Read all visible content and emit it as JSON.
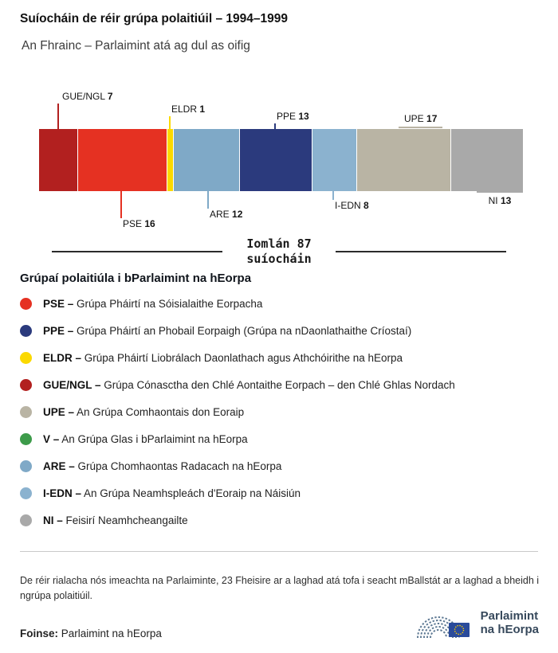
{
  "header": {
    "title": "Suíocháin de réir grúpa polaitiúil – 1994–1999",
    "subtitle": "An Fhrainc – Parlaimint atá ag dul as oifig"
  },
  "chart_data": {
    "type": "bar",
    "variant": "horizontal-stacked-seats",
    "total": 87,
    "total_label": "Iomlán 87",
    "total_unit_label": "suíocháin",
    "segments": [
      {
        "code": "GUE/NGL",
        "value": 7,
        "color": "#b2201f",
        "callout_side": "above"
      },
      {
        "code": "PSE",
        "value": 16,
        "color": "#e53122",
        "callout_side": "below"
      },
      {
        "code": "ELDR",
        "value": 1,
        "color": "#fbd900",
        "callout_side": "above"
      },
      {
        "code": "ARE",
        "value": 12,
        "color": "#7fa9c7",
        "callout_side": "below"
      },
      {
        "code": "PPE",
        "value": 13,
        "color": "#2b3a7d",
        "callout_side": "above"
      },
      {
        "code": "I-EDN",
        "value": 8,
        "color": "#8bb2cf",
        "callout_side": "below"
      },
      {
        "code": "UPE",
        "value": 17,
        "color": "#b9b4a4",
        "callout_side": "above"
      },
      {
        "code": "NI",
        "value": 13,
        "color": "#a9a9a9",
        "callout_side": "below"
      }
    ]
  },
  "legend": {
    "title": "Grúpaí polaitiúla i bParlaimint na hEorpa",
    "items": [
      {
        "code": "PSE –",
        "text": "Grúpa Pháirtí na Sóisialaithe Eorpacha",
        "color": "#e53122"
      },
      {
        "code": "PPE –",
        "text": "Grúpa Pháirtí an Phobail Eorpaigh (Grúpa na nDaonlathaithe Críostaí)",
        "color": "#2b3a7d"
      },
      {
        "code": "ELDR –",
        "text": "Grúpa Pháirtí Liobrálach Daonlathach agus Athchóirithe na hEorpa",
        "color": "#fbd900"
      },
      {
        "code": "GUE/NGL –",
        "text": "Grúpa Cónasctha den Chlé Aontaithe Eorpach – den Chlé Ghlas Nordach",
        "color": "#b2201f"
      },
      {
        "code": "UPE –",
        "text": "An Grúpa Comhaontais don Eoraip",
        "color": "#b9b4a4"
      },
      {
        "code": "V –",
        "text": "An Grúpa Glas i bParlaimint na hEorpa",
        "color": "#3d9b4a"
      },
      {
        "code": "ARE –",
        "text": "Grúpa Chomhaontas Radacach na hEorpa",
        "color": "#7fa9c7"
      },
      {
        "code": "I-EDN –",
        "text": "An Grúpa Neamhspleách d'Eoraip na Náisiún",
        "color": "#8bb2cf"
      },
      {
        "code": "NI –",
        "text": "Feisirí Neamhcheangailte",
        "color": "#a9a9a9"
      }
    ]
  },
  "footnote": "De réir rialacha nós imeachta na Parlaiminte, 23 Fheisire ar a laghad atá tofa i seacht mBallstát ar a laghad a bheidh i ngrúpa polaitiúil.",
  "source": {
    "label": "Foinse:",
    "text": "Parlaimint na hEorpa"
  },
  "logo": {
    "line1": "Parlaimint",
    "line2": "na hEorpa"
  }
}
